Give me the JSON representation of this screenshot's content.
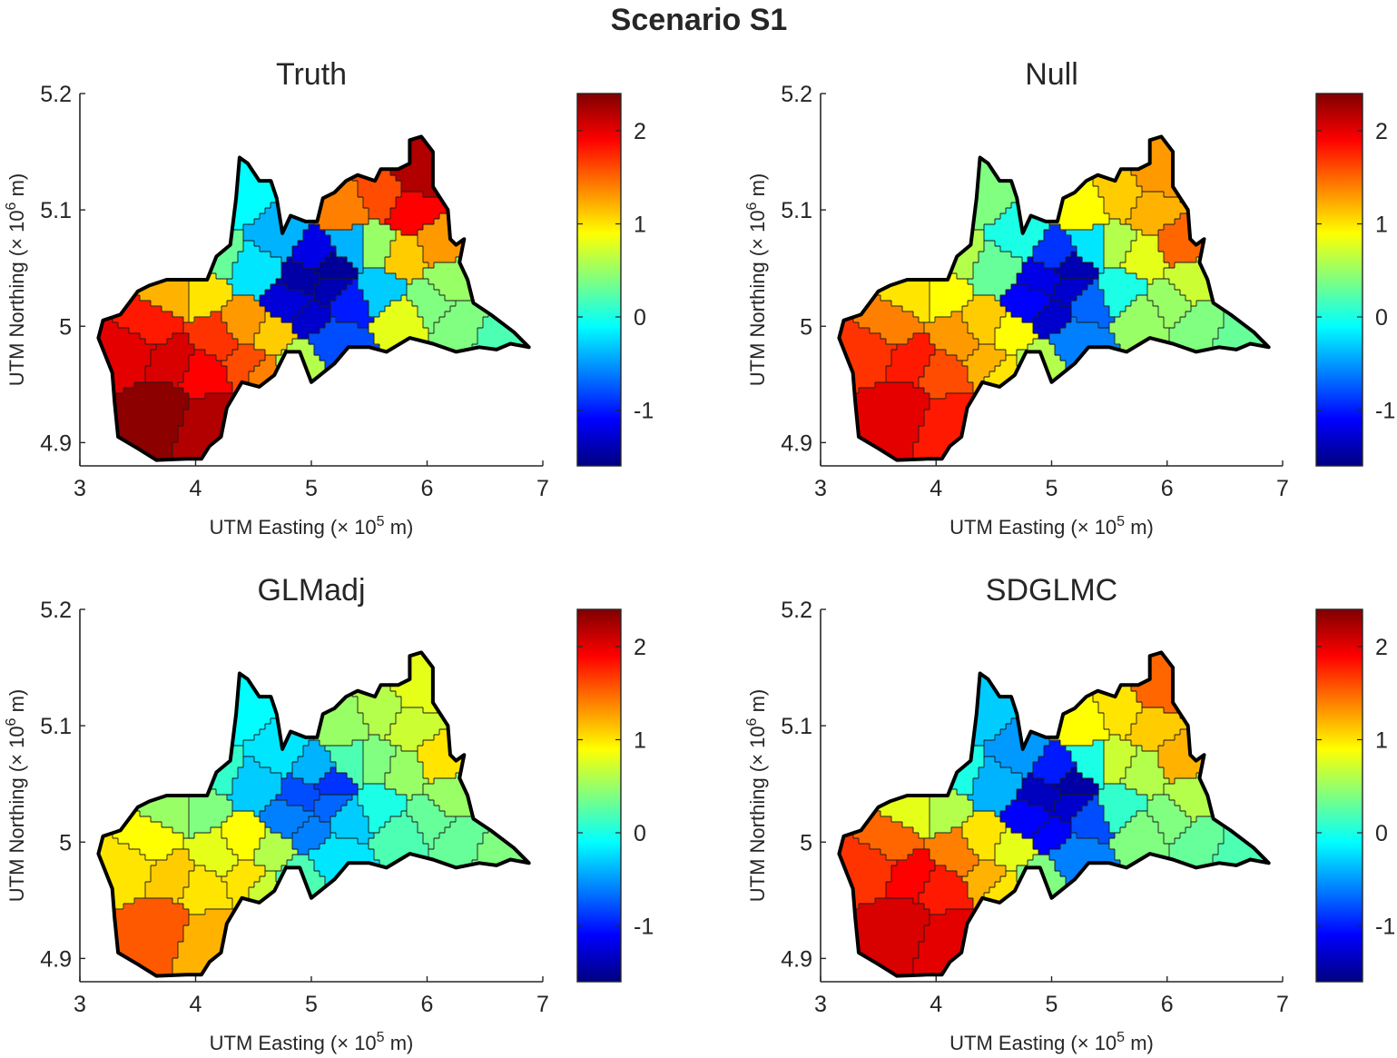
{
  "figure_title": "Scenario S1",
  "chart_data": [
    {
      "type": "heatmap",
      "subtype": "choropleth",
      "title": "Truth",
      "xlabel": "UTM Easting (× 10^5 m)",
      "ylabel": "UTM Northing (× 10^6 m)",
      "xlim": [
        3,
        7
      ],
      "ylim": [
        4.88,
        5.2
      ],
      "xticks": [
        3,
        4,
        5,
        6,
        7
      ],
      "yticks": [
        4.9,
        5,
        5.1,
        5.2
      ],
      "colorbar": {
        "colormap": "jet",
        "range": [
          -1.6,
          2.4
        ],
        "ticks": [
          -1,
          0,
          1,
          2
        ]
      },
      "regions": [
        {
          "x": 3.72,
          "y": 4.93,
          "value": 2.35
        },
        {
          "x": 4.1,
          "y": 4.92,
          "value": 2.2
        },
        {
          "x": 3.45,
          "y": 4.98,
          "value": 2.0
        },
        {
          "x": 3.8,
          "y": 4.97,
          "value": 2.05
        },
        {
          "x": 4.05,
          "y": 4.96,
          "value": 1.9
        },
        {
          "x": 3.6,
          "y": 5.0,
          "value": 1.8
        },
        {
          "x": 4.2,
          "y": 4.99,
          "value": 1.7
        },
        {
          "x": 4.45,
          "y": 4.97,
          "value": 1.6
        },
        {
          "x": 4.6,
          "y": 4.96,
          "value": 1.4
        },
        {
          "x": 3.8,
          "y": 5.03,
          "value": 1.2
        },
        {
          "x": 4.05,
          "y": 5.03,
          "value": 1.0
        },
        {
          "x": 4.4,
          "y": 5.0,
          "value": 1.3
        },
        {
          "x": 4.65,
          "y": 4.99,
          "value": 1.1
        },
        {
          "x": 4.85,
          "y": 4.97,
          "value": 0.6
        },
        {
          "x": 4.2,
          "y": 5.06,
          "value": 0.3
        },
        {
          "x": 4.5,
          "y": 5.05,
          "value": -0.2
        },
        {
          "x": 4.4,
          "y": 5.11,
          "value": -0.1
        },
        {
          "x": 4.7,
          "y": 5.08,
          "value": -0.4
        },
        {
          "x": 4.95,
          "y": 5.04,
          "value": -1.45
        },
        {
          "x": 5.15,
          "y": 5.03,
          "value": -1.4
        },
        {
          "x": 5.05,
          "y": 5.06,
          "value": -1.2
        },
        {
          "x": 5.3,
          "y": 5.02,
          "value": -1.0
        },
        {
          "x": 5.0,
          "y": 5.01,
          "value": -1.3
        },
        {
          "x": 5.2,
          "y": 4.99,
          "value": -0.8
        },
        {
          "x": 5.35,
          "y": 5.07,
          "value": -0.4
        },
        {
          "x": 5.6,
          "y": 5.03,
          "value": -0.3
        },
        {
          "x": 5.55,
          "y": 5.07,
          "value": 0.5
        },
        {
          "x": 5.3,
          "y": 5.1,
          "value": 1.4
        },
        {
          "x": 5.6,
          "y": 5.11,
          "value": 1.6
        },
        {
          "x": 5.85,
          "y": 5.1,
          "value": 1.9
        },
        {
          "x": 5.95,
          "y": 5.13,
          "value": 2.2
        },
        {
          "x": 5.8,
          "y": 5.06,
          "value": 1.1
        },
        {
          "x": 6.1,
          "y": 5.07,
          "value": 1.3
        },
        {
          "x": 6.0,
          "y": 5.02,
          "value": 0.4
        },
        {
          "x": 5.8,
          "y": 5.01,
          "value": 0.8
        },
        {
          "x": 6.3,
          "y": 5.0,
          "value": 0.4
        },
        {
          "x": 6.6,
          "y": 4.99,
          "value": 0.2
        },
        {
          "x": 6.2,
          "y": 5.04,
          "value": 0.5
        },
        {
          "x": 5.15,
          "y": 5.05,
          "value": -1.5
        },
        {
          "x": 4.85,
          "y": 5.02,
          "value": -1.25
        }
      ]
    },
    {
      "type": "heatmap",
      "subtype": "choropleth",
      "title": "Null",
      "xlabel": "UTM Easting (× 10^5 m)",
      "ylabel": "UTM Northing (× 10^6 m)",
      "xlim": [
        3,
        7
      ],
      "ylim": [
        4.88,
        5.2
      ],
      "xticks": [
        3,
        4,
        5,
        6,
        7
      ],
      "yticks": [
        4.9,
        5,
        5.1,
        5.2
      ],
      "colorbar": {
        "colormap": "jet",
        "range": [
          -1.6,
          2.4
        ],
        "ticks": [
          -1,
          0,
          1,
          2
        ]
      },
      "regions": [
        {
          "x": 3.72,
          "y": 4.93,
          "value": 2.0
        },
        {
          "x": 4.1,
          "y": 4.92,
          "value": 1.8
        },
        {
          "x": 3.45,
          "y": 4.98,
          "value": 1.7
        },
        {
          "x": 3.8,
          "y": 4.97,
          "value": 1.8
        },
        {
          "x": 4.05,
          "y": 4.96,
          "value": 1.6
        },
        {
          "x": 3.6,
          "y": 5.0,
          "value": 1.4
        },
        {
          "x": 4.2,
          "y": 4.99,
          "value": 1.3
        },
        {
          "x": 4.45,
          "y": 4.97,
          "value": 1.2
        },
        {
          "x": 4.6,
          "y": 4.96,
          "value": 1.0
        },
        {
          "x": 3.8,
          "y": 5.03,
          "value": 1.0
        },
        {
          "x": 4.05,
          "y": 5.03,
          "value": 0.9
        },
        {
          "x": 4.4,
          "y": 5.0,
          "value": 1.1
        },
        {
          "x": 4.65,
          "y": 4.99,
          "value": 0.9
        },
        {
          "x": 4.85,
          "y": 4.97,
          "value": 0.6
        },
        {
          "x": 4.2,
          "y": 5.06,
          "value": 0.6
        },
        {
          "x": 4.5,
          "y": 5.05,
          "value": 0.3
        },
        {
          "x": 4.4,
          "y": 5.11,
          "value": 0.4
        },
        {
          "x": 4.7,
          "y": 5.08,
          "value": 0.0
        },
        {
          "x": 4.95,
          "y": 5.04,
          "value": -1.2
        },
        {
          "x": 5.15,
          "y": 5.03,
          "value": -1.3
        },
        {
          "x": 5.05,
          "y": 5.06,
          "value": -0.9
        },
        {
          "x": 5.3,
          "y": 5.02,
          "value": -0.7
        },
        {
          "x": 5.0,
          "y": 5.01,
          "value": -1.3
        },
        {
          "x": 5.2,
          "y": 4.99,
          "value": -0.6
        },
        {
          "x": 5.35,
          "y": 5.07,
          "value": -0.2
        },
        {
          "x": 5.6,
          "y": 5.03,
          "value": 0.0
        },
        {
          "x": 5.55,
          "y": 5.07,
          "value": 0.6
        },
        {
          "x": 5.3,
          "y": 5.1,
          "value": 0.9
        },
        {
          "x": 5.6,
          "y": 5.11,
          "value": 1.1
        },
        {
          "x": 5.85,
          "y": 5.1,
          "value": 1.2
        },
        {
          "x": 5.95,
          "y": 5.13,
          "value": 1.3
        },
        {
          "x": 5.8,
          "y": 5.06,
          "value": 0.8
        },
        {
          "x": 6.1,
          "y": 5.07,
          "value": 1.5
        },
        {
          "x": 6.0,
          "y": 5.02,
          "value": 0.5
        },
        {
          "x": 5.8,
          "y": 5.01,
          "value": 0.5
        },
        {
          "x": 6.3,
          "y": 5.0,
          "value": 0.4
        },
        {
          "x": 6.6,
          "y": 4.99,
          "value": 0.3
        },
        {
          "x": 6.2,
          "y": 5.04,
          "value": 0.7
        },
        {
          "x": 5.15,
          "y": 5.05,
          "value": -1.4
        },
        {
          "x": 4.85,
          "y": 5.02,
          "value": -1.1
        }
      ]
    },
    {
      "type": "heatmap",
      "subtype": "choropleth",
      "title": "GLMadj",
      "xlabel": "UTM Easting (× 10^5 m)",
      "ylabel": "UTM Northing (× 10^6 m)",
      "xlim": [
        3,
        7
      ],
      "ylim": [
        4.88,
        5.2
      ],
      "xticks": [
        3,
        4,
        5,
        6,
        7
      ],
      "yticks": [
        4.9,
        5,
        5.1,
        5.2
      ],
      "colorbar": {
        "colormap": "jet",
        "range": [
          -1.6,
          2.4
        ],
        "ticks": [
          -1,
          0,
          1,
          2
        ]
      },
      "regions": [
        {
          "x": 3.72,
          "y": 4.93,
          "value": 1.55
        },
        {
          "x": 4.1,
          "y": 4.92,
          "value": 1.2
        },
        {
          "x": 3.45,
          "y": 4.98,
          "value": 1.0
        },
        {
          "x": 3.8,
          "y": 4.97,
          "value": 1.1
        },
        {
          "x": 4.05,
          "y": 4.96,
          "value": 1.0
        },
        {
          "x": 3.6,
          "y": 5.0,
          "value": 0.9
        },
        {
          "x": 4.2,
          "y": 4.99,
          "value": 0.8
        },
        {
          "x": 4.45,
          "y": 4.97,
          "value": 1.0
        },
        {
          "x": 4.6,
          "y": 4.96,
          "value": 0.7
        },
        {
          "x": 3.8,
          "y": 5.03,
          "value": 0.5
        },
        {
          "x": 4.05,
          "y": 5.03,
          "value": 0.4
        },
        {
          "x": 4.4,
          "y": 5.0,
          "value": 0.9
        },
        {
          "x": 4.65,
          "y": 4.99,
          "value": 0.6
        },
        {
          "x": 4.85,
          "y": 4.97,
          "value": 0.2
        },
        {
          "x": 4.2,
          "y": 5.06,
          "value": 0.1
        },
        {
          "x": 4.5,
          "y": 5.05,
          "value": -0.3
        },
        {
          "x": 4.4,
          "y": 5.11,
          "value": -0.1
        },
        {
          "x": 4.7,
          "y": 5.08,
          "value": -0.2
        },
        {
          "x": 4.95,
          "y": 5.04,
          "value": -0.8
        },
        {
          "x": 5.15,
          "y": 5.03,
          "value": -0.7
        },
        {
          "x": 5.05,
          "y": 5.06,
          "value": -0.4
        },
        {
          "x": 5.3,
          "y": 5.02,
          "value": -0.3
        },
        {
          "x": 5.0,
          "y": 5.01,
          "value": -0.6
        },
        {
          "x": 5.2,
          "y": 4.99,
          "value": -0.2
        },
        {
          "x": 5.35,
          "y": 5.07,
          "value": 0.2
        },
        {
          "x": 5.6,
          "y": 5.03,
          "value": 0.0
        },
        {
          "x": 5.55,
          "y": 5.07,
          "value": 0.4
        },
        {
          "x": 5.3,
          "y": 5.1,
          "value": 0.5
        },
        {
          "x": 5.6,
          "y": 5.11,
          "value": 0.6
        },
        {
          "x": 5.85,
          "y": 5.1,
          "value": 0.7
        },
        {
          "x": 5.95,
          "y": 5.13,
          "value": 0.8
        },
        {
          "x": 5.8,
          "y": 5.06,
          "value": 0.5
        },
        {
          "x": 6.1,
          "y": 5.07,
          "value": 1.0
        },
        {
          "x": 6.0,
          "y": 5.02,
          "value": 0.3
        },
        {
          "x": 5.8,
          "y": 5.01,
          "value": 0.2
        },
        {
          "x": 6.3,
          "y": 5.0,
          "value": 0.3
        },
        {
          "x": 6.6,
          "y": 4.99,
          "value": 0.4
        },
        {
          "x": 6.2,
          "y": 5.04,
          "value": 0.5
        },
        {
          "x": 5.15,
          "y": 5.05,
          "value": -0.9
        },
        {
          "x": 4.85,
          "y": 5.02,
          "value": -0.6
        }
      ]
    },
    {
      "type": "heatmap",
      "subtype": "choropleth",
      "title": "SDGLMC",
      "xlabel": "UTM Easting (× 10^5 m)",
      "ylabel": "UTM Northing (× 10^6 m)",
      "xlim": [
        3,
        7
      ],
      "ylim": [
        4.88,
        5.2
      ],
      "xticks": [
        3,
        4,
        5,
        6,
        7
      ],
      "yticks": [
        4.9,
        5,
        5.1,
        5.2
      ],
      "colorbar": {
        "colormap": "jet",
        "range": [
          -1.6,
          2.4
        ],
        "ticks": [
          -1,
          0,
          1,
          2
        ]
      },
      "regions": [
        {
          "x": 3.72,
          "y": 4.93,
          "value": 2.05
        },
        {
          "x": 4.1,
          "y": 4.92,
          "value": 2.0
        },
        {
          "x": 3.45,
          "y": 4.98,
          "value": 1.7
        },
        {
          "x": 3.8,
          "y": 4.97,
          "value": 1.9
        },
        {
          "x": 4.05,
          "y": 4.96,
          "value": 1.8
        },
        {
          "x": 3.6,
          "y": 5.0,
          "value": 1.5
        },
        {
          "x": 4.2,
          "y": 4.99,
          "value": 1.4
        },
        {
          "x": 4.45,
          "y": 4.97,
          "value": 1.2
        },
        {
          "x": 4.6,
          "y": 4.96,
          "value": 1.0
        },
        {
          "x": 3.8,
          "y": 5.03,
          "value": 0.8
        },
        {
          "x": 4.05,
          "y": 5.03,
          "value": 0.6
        },
        {
          "x": 4.4,
          "y": 5.0,
          "value": 1.0
        },
        {
          "x": 4.65,
          "y": 4.99,
          "value": 0.8
        },
        {
          "x": 4.85,
          "y": 4.97,
          "value": 0.4
        },
        {
          "x": 4.2,
          "y": 5.06,
          "value": 0.0
        },
        {
          "x": 4.5,
          "y": 5.05,
          "value": -0.4
        },
        {
          "x": 4.4,
          "y": 5.11,
          "value": -0.3
        },
        {
          "x": 4.7,
          "y": 5.08,
          "value": -0.5
        },
        {
          "x": 4.95,
          "y": 5.04,
          "value": -1.35
        },
        {
          "x": 5.15,
          "y": 5.03,
          "value": -1.3
        },
        {
          "x": 5.05,
          "y": 5.06,
          "value": -1.0
        },
        {
          "x": 5.3,
          "y": 5.02,
          "value": -0.8
        },
        {
          "x": 5.0,
          "y": 5.01,
          "value": -1.1
        },
        {
          "x": 5.2,
          "y": 4.99,
          "value": -0.6
        },
        {
          "x": 5.35,
          "y": 5.07,
          "value": 0.0
        },
        {
          "x": 5.6,
          "y": 5.03,
          "value": 0.1
        },
        {
          "x": 5.55,
          "y": 5.07,
          "value": 0.7
        },
        {
          "x": 5.3,
          "y": 5.1,
          "value": 0.9
        },
        {
          "x": 5.6,
          "y": 5.11,
          "value": 1.0
        },
        {
          "x": 5.85,
          "y": 5.1,
          "value": 1.1
        },
        {
          "x": 5.95,
          "y": 5.13,
          "value": 1.5
        },
        {
          "x": 5.8,
          "y": 5.06,
          "value": 0.6
        },
        {
          "x": 6.1,
          "y": 5.07,
          "value": 1.2
        },
        {
          "x": 6.0,
          "y": 5.02,
          "value": 0.4
        },
        {
          "x": 5.8,
          "y": 5.01,
          "value": 0.4
        },
        {
          "x": 6.3,
          "y": 5.0,
          "value": 0.3
        },
        {
          "x": 6.6,
          "y": 4.99,
          "value": 0.2
        },
        {
          "x": 6.2,
          "y": 5.04,
          "value": 0.6
        },
        {
          "x": 5.15,
          "y": 5.05,
          "value": -1.45
        },
        {
          "x": 4.85,
          "y": 5.02,
          "value": -1.1
        }
      ]
    }
  ]
}
